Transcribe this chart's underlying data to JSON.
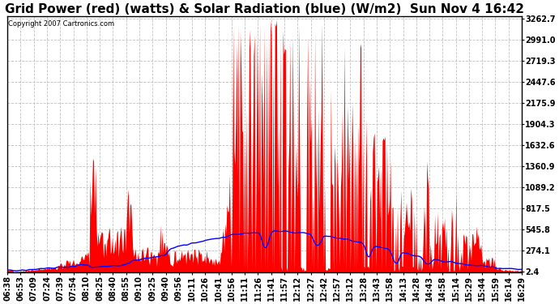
{
  "title": "Grid Power (red) (watts) & Solar Radiation (blue) (W/m2)  Sun Nov 4 16:42",
  "copyright": "Copyright 2007 Cartronics.com",
  "yticks": [
    2.4,
    274.1,
    545.8,
    817.5,
    1089.2,
    1360.9,
    1632.6,
    1904.3,
    2175.9,
    2447.6,
    2719.3,
    2991.0,
    3262.7
  ],
  "ymin": 0,
  "ymax": 3262.7,
  "background_color": "#ffffff",
  "plot_bg_color": "#ffffff",
  "grid_color": "#bbbbbb",
  "red_color": "#ff0000",
  "blue_color": "#0000ff",
  "title_fontsize": 11,
  "tick_fontsize": 7,
  "xtick_labels": [
    "06:38",
    "06:53",
    "07:09",
    "07:24",
    "07:39",
    "07:54",
    "08:10",
    "08:25",
    "08:40",
    "08:55",
    "09:10",
    "09:25",
    "09:40",
    "09:56",
    "10:11",
    "10:26",
    "10:41",
    "10:56",
    "11:11",
    "11:26",
    "11:41",
    "11:57",
    "12:12",
    "12:27",
    "12:42",
    "12:57",
    "13:12",
    "13:28",
    "13:43",
    "13:58",
    "14:13",
    "14:28",
    "14:43",
    "14:58",
    "15:14",
    "15:29",
    "15:44",
    "15:59",
    "16:14",
    "16:29"
  ],
  "num_points": 580
}
